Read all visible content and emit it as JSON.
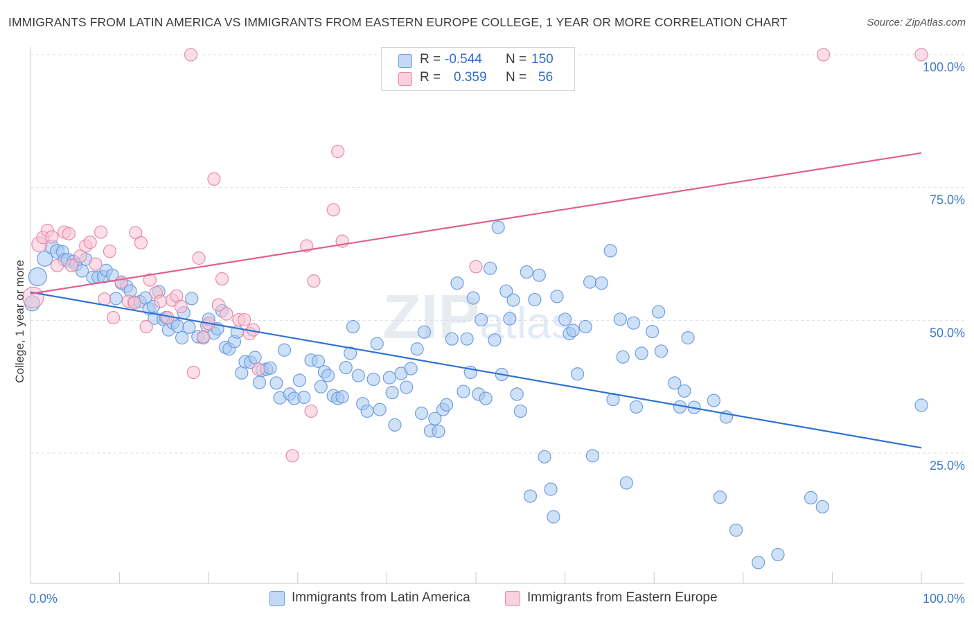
{
  "title": "IMMIGRANTS FROM LATIN AMERICA VS IMMIGRANTS FROM EASTERN EUROPE COLLEGE, 1 YEAR OR MORE CORRELATION CHART",
  "source": "Source: ZipAtlas.com",
  "watermark": "ZIPatlas",
  "legend": {
    "r_label": "R =",
    "n_label": "N =",
    "rows": [
      {
        "r": "-0.544",
        "n": "150",
        "color": "#a8c8f0",
        "border": "#6d9de0"
      },
      {
        "r": "0.359",
        "n": "56",
        "color": "#f7c3d3",
        "border": "#e88aa8"
      }
    ]
  },
  "bottom_legend": [
    {
      "label": "Immigrants from Latin America",
      "color": "#a8c8f0",
      "border": "#6d9de0"
    },
    {
      "label": "Immigrants from Eastern Europe",
      "color": "#f7c3d3",
      "border": "#e88aa8"
    }
  ],
  "chart_data": {
    "type": "scatter",
    "title": "IMMIGRANTS FROM LATIN AMERICA VS IMMIGRANTS FROM EASTERN EUROPE COLLEGE, 1 YEAR OR MORE CORRELATION CHART",
    "xlabel": "",
    "ylabel": "College, 1 year or more",
    "xlim": [
      0,
      100
    ],
    "ylim": [
      0,
      102
    ],
    "x_tick_labels": [
      "0.0%",
      "100.0%"
    ],
    "y_ticks": [
      25,
      50,
      75,
      100
    ],
    "y_tick_labels": [
      "25.0%",
      "50.0%",
      "75.0%",
      "100.0%"
    ],
    "grid": "horizontal dashed",
    "series": [
      {
        "name": "Immigrants from Latin America",
        "color": "#6d9de0",
        "fill": "#a8c8f0",
        "trend": {
          "x": [
            0,
            100
          ],
          "y": [
            55.3,
            26.0
          ],
          "color": "#2e72d2"
        },
        "points": [
          [
            0.2,
            53.2,
            11
          ],
          [
            0.8,
            58.2,
            13
          ],
          [
            1.6,
            61.6,
            11
          ],
          [
            2.4,
            63.8,
            10
          ],
          [
            3.0,
            63.0,
            10
          ],
          [
            3.6,
            62.9,
            9
          ],
          [
            3.8,
            61.4,
            9
          ],
          [
            4.2,
            61.3,
            10
          ],
          [
            4.8,
            61.1,
            9
          ],
          [
            5.1,
            60.5,
            9
          ],
          [
            5.8,
            59.3,
            9
          ],
          [
            6.2,
            61.5,
            9
          ],
          [
            7.0,
            58.1,
            9
          ],
          [
            7.6,
            58.1,
            9
          ],
          [
            8.2,
            58.2,
            9
          ],
          [
            8.5,
            59.4,
            9
          ],
          [
            9.2,
            58.5,
            9
          ],
          [
            9.6,
            54.1,
            9
          ],
          [
            10.2,
            57.0,
            9
          ],
          [
            10.8,
            56.4,
            9
          ],
          [
            11.2,
            55.5,
            9
          ],
          [
            11.6,
            53.4,
            9
          ],
          [
            12.3,
            53.5,
            9
          ],
          [
            12.9,
            54.2,
            9
          ],
          [
            13.3,
            52.2,
            9
          ],
          [
            13.8,
            52.6,
            9
          ],
          [
            13.9,
            50.4,
            9
          ],
          [
            14.4,
            55.4,
            9
          ],
          [
            14.9,
            50.2,
            9
          ],
          [
            15.2,
            50.5,
            9
          ],
          [
            15.5,
            48.2,
            9
          ],
          [
            16.0,
            49.5,
            9
          ],
          [
            16.5,
            48.9,
            9
          ],
          [
            17.0,
            46.7,
            9
          ],
          [
            17.2,
            51.4,
            9
          ],
          [
            17.8,
            48.7,
            9
          ],
          [
            18.1,
            54.1,
            9
          ],
          [
            18.8,
            46.9,
            9
          ],
          [
            19.4,
            46.7,
            9
          ],
          [
            19.8,
            49.0,
            9
          ],
          [
            20.0,
            50.2,
            9
          ],
          [
            20.6,
            47.6,
            9
          ],
          [
            21.0,
            48.4,
            9
          ],
          [
            21.5,
            51.8,
            9
          ],
          [
            21.9,
            44.9,
            9
          ],
          [
            22.3,
            44.6,
            9
          ],
          [
            22.9,
            46.0,
            9
          ],
          [
            23.2,
            47.8,
            9
          ],
          [
            23.7,
            40.1,
            9
          ],
          [
            24.1,
            42.2,
            9
          ],
          [
            24.7,
            42.1,
            9
          ],
          [
            25.2,
            43.0,
            9
          ],
          [
            25.7,
            38.3,
            9
          ],
          [
            26.0,
            40.6,
            9
          ],
          [
            26.5,
            40.8,
            9
          ],
          [
            26.9,
            41.0,
            9
          ],
          [
            27.6,
            38.2,
            9
          ],
          [
            28.0,
            35.4,
            9
          ],
          [
            28.5,
            44.4,
            9
          ],
          [
            29.1,
            36.1,
            9
          ],
          [
            29.6,
            35.3,
            9
          ],
          [
            30.2,
            38.7,
            9
          ],
          [
            30.7,
            35.5,
            9
          ],
          [
            31.5,
            42.5,
            9
          ],
          [
            32.3,
            42.3,
            9
          ],
          [
            32.6,
            37.5,
            9
          ],
          [
            33.0,
            40.3,
            9
          ],
          [
            33.4,
            39.6,
            9
          ],
          [
            34.0,
            35.8,
            9
          ],
          [
            34.5,
            35.3,
            9
          ],
          [
            35.0,
            35.6,
            9
          ],
          [
            35.4,
            41.1,
            9
          ],
          [
            35.9,
            43.8,
            9
          ],
          [
            36.2,
            48.8,
            9
          ],
          [
            36.8,
            39.6,
            9
          ],
          [
            37.3,
            34.3,
            9
          ],
          [
            37.8,
            32.9,
            9
          ],
          [
            38.5,
            38.9,
            9
          ],
          [
            38.9,
            45.6,
            9
          ],
          [
            39.2,
            33.2,
            9
          ],
          [
            40.3,
            39.2,
            9
          ],
          [
            40.6,
            36.4,
            9
          ],
          [
            40.9,
            30.3,
            9
          ],
          [
            41.6,
            40.0,
            9
          ],
          [
            42.2,
            37.4,
            9
          ],
          [
            42.7,
            40.9,
            9
          ],
          [
            43.4,
            44.6,
            9
          ],
          [
            43.9,
            32.5,
            9
          ],
          [
            44.2,
            47.8,
            9
          ],
          [
            44.9,
            29.2,
            9
          ],
          [
            45.4,
            31.5,
            9
          ],
          [
            45.8,
            29.1,
            9
          ],
          [
            46.3,
            33.2,
            9
          ],
          [
            46.7,
            34.1,
            9
          ],
          [
            47.3,
            46.5,
            9
          ],
          [
            47.9,
            57.0,
            9
          ],
          [
            48.6,
            36.6,
            9
          ],
          [
            49.0,
            46.5,
            9
          ],
          [
            49.4,
            40.2,
            9
          ],
          [
            49.7,
            54.2,
            9
          ],
          [
            50.3,
            36.1,
            9
          ],
          [
            50.6,
            50.1,
            9
          ],
          [
            51.1,
            35.3,
            9
          ],
          [
            51.6,
            59.8,
            9
          ],
          [
            52.1,
            46.3,
            9
          ],
          [
            52.5,
            67.5,
            9
          ],
          [
            52.9,
            39.8,
            9
          ],
          [
            53.4,
            55.5,
            9
          ],
          [
            53.8,
            50.3,
            9
          ],
          [
            54.2,
            53.8,
            9
          ],
          [
            54.6,
            36.1,
            9
          ],
          [
            55.0,
            32.9,
            9
          ],
          [
            55.7,
            59.1,
            9
          ],
          [
            56.1,
            16.9,
            9
          ],
          [
            56.6,
            53.9,
            9
          ],
          [
            57.1,
            58.5,
            9
          ],
          [
            57.7,
            24.3,
            9
          ],
          [
            58.4,
            18.2,
            9
          ],
          [
            58.7,
            13.0,
            9
          ],
          [
            59.1,
            54.5,
            9
          ],
          [
            60.0,
            50.2,
            9
          ],
          [
            60.5,
            47.5,
            9
          ],
          [
            60.9,
            48.1,
            9
          ],
          [
            61.4,
            39.9,
            9
          ],
          [
            62.3,
            48.8,
            9
          ],
          [
            62.8,
            57.2,
            9
          ],
          [
            63.1,
            24.5,
            9
          ],
          [
            64.1,
            57.0,
            9
          ],
          [
            65.1,
            63.1,
            9
          ],
          [
            65.4,
            35.1,
            9
          ],
          [
            66.2,
            50.2,
            9
          ],
          [
            66.5,
            43.1,
            9
          ],
          [
            66.9,
            19.4,
            9
          ],
          [
            67.7,
            49.5,
            9
          ],
          [
            68.0,
            33.7,
            9
          ],
          [
            68.6,
            43.8,
            9
          ],
          [
            69.8,
            47.9,
            9
          ],
          [
            70.5,
            51.6,
            9
          ],
          [
            70.8,
            44.2,
            9
          ],
          [
            72.3,
            38.2,
            9
          ],
          [
            72.9,
            33.7,
            9
          ],
          [
            73.4,
            36.7,
            9
          ],
          [
            73.8,
            46.7,
            9
          ],
          [
            74.5,
            33.6,
            9
          ],
          [
            76.7,
            34.9,
            9
          ],
          [
            77.4,
            16.7,
            9
          ],
          [
            78.1,
            31.8,
            9
          ],
          [
            79.2,
            10.5,
            9
          ],
          [
            81.7,
            4.4,
            9
          ],
          [
            83.9,
            5.9,
            9
          ],
          [
            87.6,
            16.6,
            9
          ],
          [
            88.9,
            14.9,
            9
          ],
          [
            100.0,
            34.0,
            9
          ]
        ]
      },
      {
        "name": "Immigrants from Eastern Europe",
        "color": "#e88aa8",
        "fill": "#f7c3d3",
        "trend": {
          "x": [
            0,
            100
          ],
          "y": [
            55.0,
            81.5
          ],
          "color": "#e0608a"
        },
        "points": [
          [
            0.3,
            54.3,
            15
          ],
          [
            1.0,
            64.3,
            11
          ],
          [
            1.4,
            65.6,
            9
          ],
          [
            1.9,
            66.9,
            9
          ],
          [
            2.4,
            65.7,
            9
          ],
          [
            3.0,
            60.3,
            9
          ],
          [
            3.8,
            66.6,
            9
          ],
          [
            4.3,
            66.3,
            9
          ],
          [
            4.6,
            60.3,
            9
          ],
          [
            5.6,
            62.1,
            9
          ],
          [
            6.2,
            64.0,
            9
          ],
          [
            6.7,
            64.7,
            9
          ],
          [
            7.3,
            60.6,
            9
          ],
          [
            7.9,
            66.6,
            9
          ],
          [
            8.3,
            54.0,
            9
          ],
          [
            8.9,
            63.0,
            9
          ],
          [
            9.3,
            50.5,
            9
          ],
          [
            10.2,
            57.2,
            9
          ],
          [
            11.0,
            53.6,
            9
          ],
          [
            11.7,
            53.3,
            9
          ],
          [
            11.8,
            66.5,
            9
          ],
          [
            12.4,
            64.6,
            9
          ],
          [
            13.0,
            48.8,
            9
          ],
          [
            13.4,
            57.6,
            9
          ],
          [
            14.1,
            55.2,
            9
          ],
          [
            14.6,
            53.6,
            9
          ],
          [
            15.4,
            50.5,
            9
          ],
          [
            15.9,
            53.8,
            9
          ],
          [
            16.4,
            54.6,
            9
          ],
          [
            16.9,
            52.6,
            9
          ],
          [
            18.0,
            100.0,
            9
          ],
          [
            18.3,
            40.2,
            9
          ],
          [
            18.9,
            61.7,
            9
          ],
          [
            19.4,
            46.9,
            9
          ],
          [
            20.0,
            49.4,
            9
          ],
          [
            20.6,
            76.6,
            9
          ],
          [
            21.1,
            52.9,
            9
          ],
          [
            21.5,
            57.8,
            9
          ],
          [
            22.0,
            51.2,
            9
          ],
          [
            23.4,
            50.1,
            9
          ],
          [
            24.0,
            50.1,
            9
          ],
          [
            24.6,
            47.5,
            9
          ],
          [
            25.0,
            48.2,
            9
          ],
          [
            25.6,
            40.8,
            9
          ],
          [
            29.4,
            24.5,
            9
          ],
          [
            31.0,
            64.0,
            9
          ],
          [
            31.5,
            32.9,
            9
          ],
          [
            31.8,
            57.4,
            9
          ],
          [
            34.0,
            70.8,
            9
          ],
          [
            34.5,
            81.8,
            9
          ],
          [
            35.0,
            64.9,
            9
          ],
          [
            50.0,
            60.1,
            9
          ],
          [
            89.0,
            100.0,
            9
          ],
          [
            100.0,
            100.0,
            9
          ]
        ]
      }
    ]
  }
}
